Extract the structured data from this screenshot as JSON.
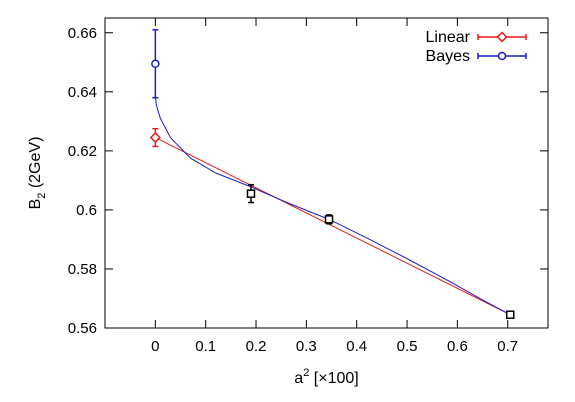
{
  "chart_data": {
    "type": "scatter",
    "title": "",
    "xlabel": {
      "main": "a",
      "sup": "2",
      "rest": " [×100]"
    },
    "ylabel": {
      "main": "B",
      "sub": "2",
      "rest": " (2GeV)"
    },
    "xlim": [
      -0.1,
      0.78
    ],
    "ylim": [
      0.56,
      0.665
    ],
    "xticks": [
      0,
      0.1,
      0.2,
      0.3,
      0.4,
      0.5,
      0.6,
      0.7
    ],
    "xtick_labels": [
      "0",
      "0.1",
      "0.2",
      "0.3",
      "0.4",
      "0.5",
      "0.6",
      "0.7"
    ],
    "yticks": [
      0.56,
      0.58,
      0.6,
      0.62,
      0.64,
      0.66
    ],
    "ytick_labels": [
      "0.56",
      "0.58",
      "0.6",
      "0.62",
      "0.64",
      "0.66"
    ],
    "grid": false,
    "legend_position": "top-right",
    "data_points": {
      "x": [
        0.19,
        0.345,
        0.705
      ],
      "y": [
        0.6055,
        0.5968,
        0.5645
      ],
      "err": [
        0.003,
        0.0015,
        0.001
      ],
      "color": "#000000",
      "marker": "square"
    },
    "series": [
      {
        "name": "Linear",
        "color": "#e41a1c",
        "marker": "diamond",
        "extrapolated": {
          "x": 0,
          "y": 0.6245,
          "err": 0.003
        },
        "fit": {
          "form": "linear",
          "x": [
            0,
            0.705
          ],
          "y": [
            0.6245,
            0.5645
          ]
        }
      },
      {
        "name": "Bayes",
        "color": "#1f1fbf",
        "marker": "circle",
        "extrapolated": {
          "x": 0,
          "y": 0.6495,
          "err": 0.0115
        },
        "fit": {
          "form": "curve",
          "x": [
            0,
            0.002,
            0.01,
            0.03,
            0.07,
            0.12,
            0.19,
            0.26,
            0.345,
            0.42,
            0.5,
            0.58,
            0.65,
            0.705
          ],
          "y": [
            0.6385,
            0.6355,
            0.631,
            0.6245,
            0.6175,
            0.6125,
            0.6078,
            0.6026,
            0.5968,
            0.5905,
            0.5835,
            0.5762,
            0.5695,
            0.5645
          ]
        }
      }
    ]
  }
}
